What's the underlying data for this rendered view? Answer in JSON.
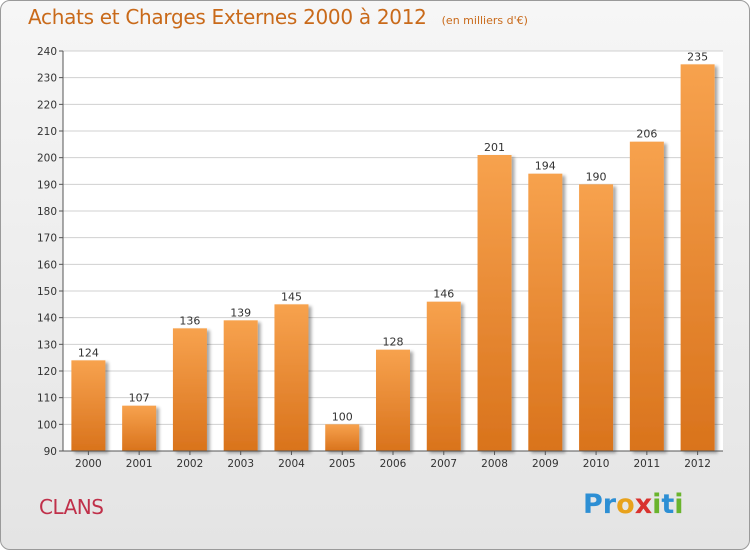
{
  "header": {
    "title": "Achats et Charges Externes 2000 à 2012",
    "unit": "(en milliers d'€)"
  },
  "commune": "CLANS",
  "logo": {
    "text": "Proxiti",
    "letters": [
      {
        "ch": "P",
        "color": "#2d8fd4"
      },
      {
        "ch": "r",
        "color": "#2d8fd4"
      },
      {
        "ch": "o",
        "color": "#e8a21c"
      },
      {
        "ch": "x",
        "color": "#d9322e"
      },
      {
        "ch": "i",
        "color": "#6ab42d"
      },
      {
        "ch": "t",
        "color": "#2d8fd4"
      },
      {
        "ch": "i",
        "color": "#6ab42d"
      }
    ]
  },
  "colors": {
    "bar_top": "#f7a24e",
    "bar_bottom": "#d9731c",
    "grid": "#d0d0d0",
    "axis": "#555555"
  },
  "chart_data": {
    "type": "bar",
    "title": "Achats et Charges Externes 2000 à 2012",
    "subtitle": "(en milliers d'€)",
    "categories": [
      "2000",
      "2001",
      "2002",
      "2003",
      "2004",
      "2005",
      "2006",
      "2007",
      "2008",
      "2009",
      "2010",
      "2011",
      "2012"
    ],
    "values": [
      124,
      107,
      136,
      139,
      145,
      100,
      128,
      146,
      201,
      194,
      190,
      206,
      235
    ],
    "ylim": [
      90,
      240
    ],
    "yticks": [
      90,
      100,
      110,
      120,
      130,
      140,
      150,
      160,
      170,
      180,
      190,
      200,
      210,
      220,
      230,
      240
    ],
    "grid": true,
    "xlabel": "",
    "ylabel": ""
  }
}
